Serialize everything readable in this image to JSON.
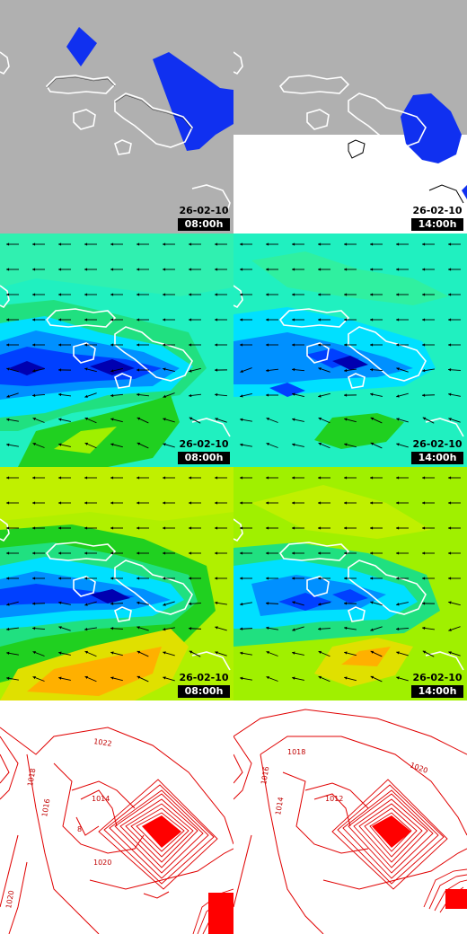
{
  "colors": {
    "cloud_grey": "#b0b0b0",
    "cloud_white": "#ffffff",
    "precip_blue": "#1030f0",
    "coastline": "#ffffff",
    "wind_arrow": "#000000",
    "isobar": "#e00000",
    "wind_palette": [
      "#0000b0",
      "#0040ff",
      "#0090ff",
      "#00e0ff",
      "#20f0c0",
      "#20e080",
      "#20d020",
      "#a0f000",
      "#e0e000",
      "#ffb000"
    ]
  },
  "panels": [
    {
      "row": "cloud-cover",
      "column": 0,
      "date": "26-02-10",
      "time": "08:00h"
    },
    {
      "row": "cloud-cover",
      "column": 1,
      "date": "26-02-10",
      "time": "14:00h"
    },
    {
      "row": "wind-surface",
      "column": 0,
      "date": "26-02-10",
      "time": "08:00h"
    },
    {
      "row": "wind-surface",
      "column": 1,
      "date": "26-02-10",
      "time": "14:00h"
    },
    {
      "row": "wind-altitude",
      "column": 0,
      "date": "26-02-10",
      "time": "08:00h"
    },
    {
      "row": "wind-altitude",
      "column": 1,
      "date": "26-02-10",
      "time": "14:00h"
    },
    {
      "row": "pressure",
      "column": 0
    },
    {
      "row": "pressure",
      "column": 1
    }
  ],
  "isobar_labels": {
    "left": [
      "1022",
      "1018",
      "1016",
      "1014",
      "1020",
      "1020",
      "8"
    ],
    "right": [
      "1018",
      "1020",
      "1016",
      "1014",
      "1012"
    ]
  }
}
